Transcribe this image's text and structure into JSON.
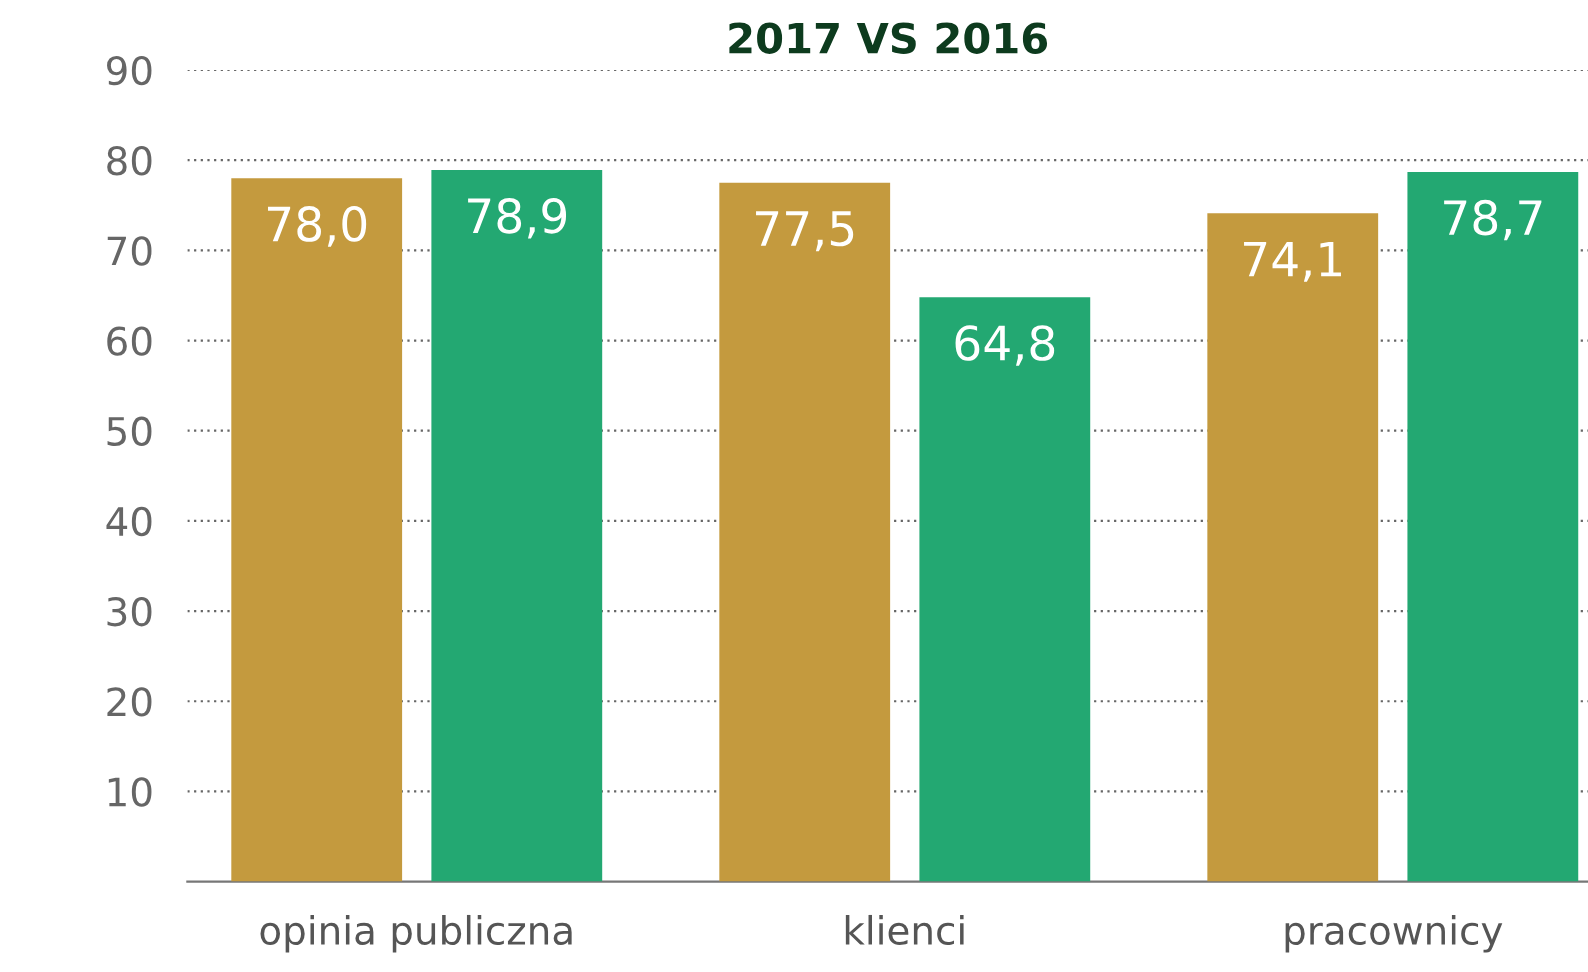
{
  "chart_data": {
    "type": "bar",
    "title": "2017 VS 2016",
    "categories": [
      "opinia publiczna",
      "klienci",
      "pracownicy"
    ],
    "series": [
      {
        "color": "#c49a3e",
        "values": [
          78.0,
          77.5,
          74.1
        ],
        "value_labels": [
          "78,0",
          "77,5",
          "74,1"
        ]
      },
      {
        "color": "#23a872",
        "values": [
          78.9,
          64.8,
          78.7
        ],
        "value_labels": [
          "78,9",
          "64,8",
          "78,7"
        ]
      }
    ],
    "ylim": [
      0,
      90
    ],
    "yticks": [
      10,
      20,
      30,
      40,
      50,
      60,
      70,
      80,
      90
    ],
    "grid": "y",
    "legend": false
  }
}
